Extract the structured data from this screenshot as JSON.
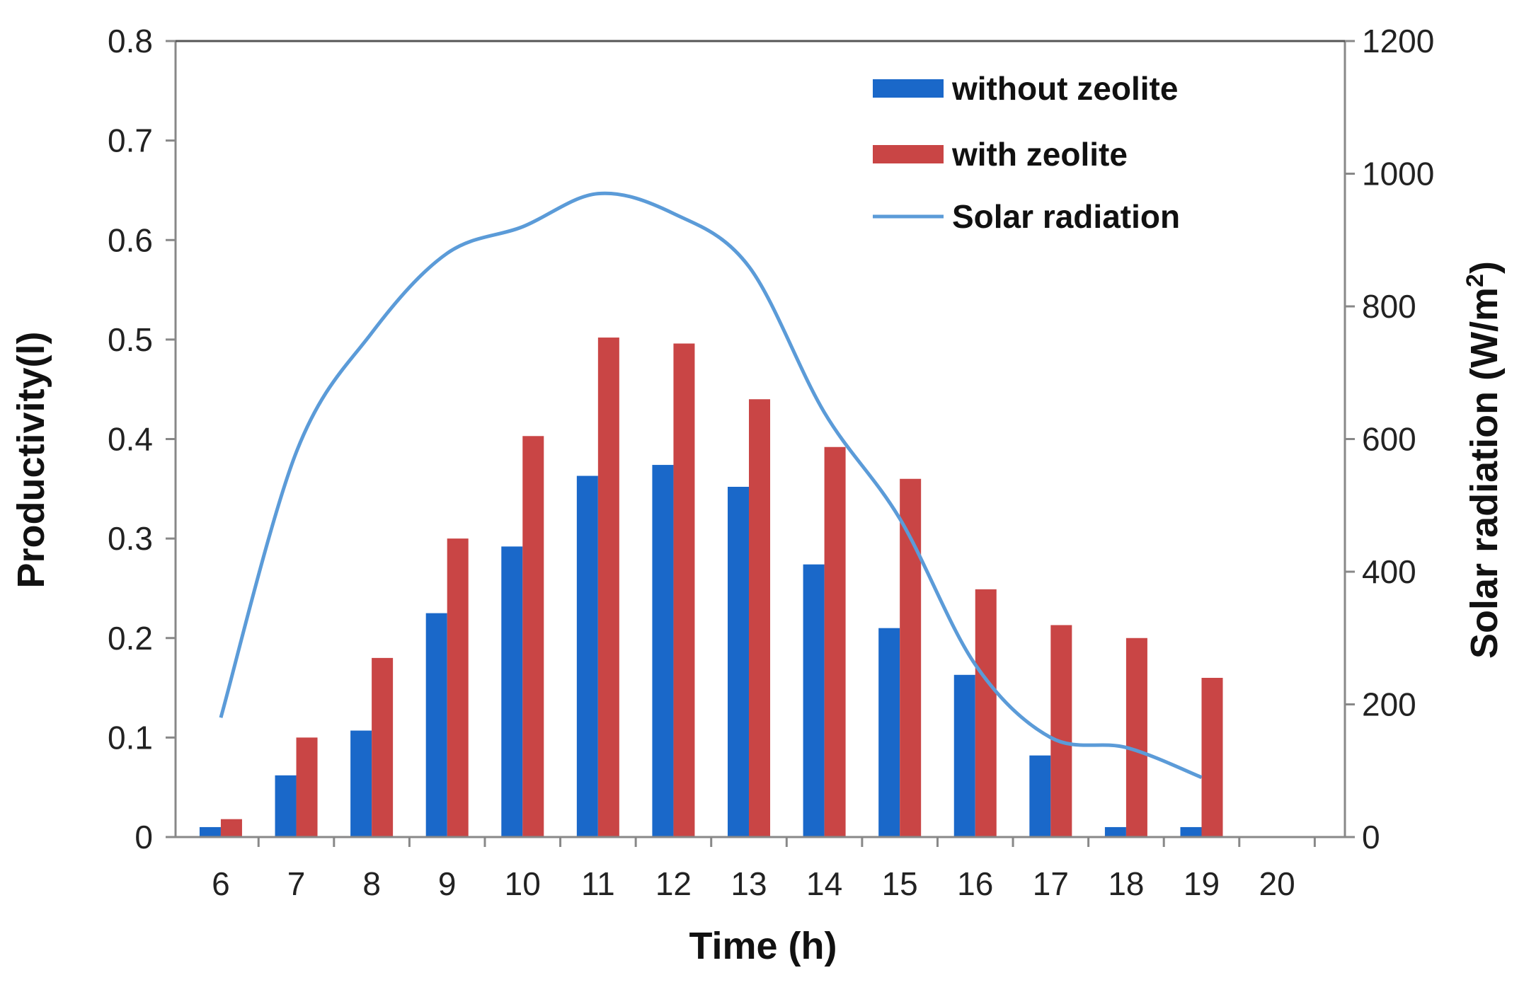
{
  "chart_data": {
    "type": "bar",
    "title": "",
    "xlabel": "Time (h)",
    "ylabel": "Productivity(l)",
    "y2label_main": "Solar radiation (W/m",
    "y2label_sup": "2",
    "y2label_close": ")",
    "categories": [
      "6",
      "7",
      "8",
      "9",
      "10",
      "11",
      "12",
      "13",
      "14",
      "15",
      "16",
      "17",
      "18",
      "19",
      "20"
    ],
    "ylim": [
      0,
      0.8
    ],
    "y_ticks": [
      "0",
      "0.1",
      "0.2",
      "0.3",
      "0.4",
      "0.5",
      "0.6",
      "0.7",
      "0.8"
    ],
    "y2lim": [
      0,
      1200
    ],
    "y2_ticks": [
      "0",
      "200",
      "400",
      "600",
      "800",
      "1000",
      "1200"
    ],
    "series": [
      {
        "name": "without zeolite",
        "type": "bar",
        "color": "#1a68c9",
        "values": [
          0.01,
          0.062,
          0.107,
          0.225,
          0.292,
          0.363,
          0.374,
          0.352,
          0.274,
          0.21,
          0.163,
          0.082,
          0.01,
          0.01,
          null
        ]
      },
      {
        "name": "with zeolite",
        "type": "bar",
        "color": "#c94545",
        "values": [
          0.018,
          0.1,
          0.18,
          0.3,
          0.403,
          0.502,
          0.496,
          0.44,
          0.392,
          0.36,
          0.249,
          0.213,
          0.2,
          0.16,
          null
        ]
      },
      {
        "name": "Solar radiation",
        "type": "line",
        "axis": "right",
        "color": "#5b9bd8",
        "x": [
          6,
          7,
          8,
          9,
          10,
          11,
          12,
          13,
          14,
          15,
          16,
          17,
          18,
          19
        ],
        "values": [
          180,
          580,
          760,
          880,
          920,
          970,
          940,
          860,
          640,
          480,
          260,
          150,
          135,
          90
        ]
      }
    ],
    "legend": {
      "position": "top-right",
      "entries": [
        "without zeolite",
        "with zeolite",
        "Solar radiation"
      ]
    }
  }
}
